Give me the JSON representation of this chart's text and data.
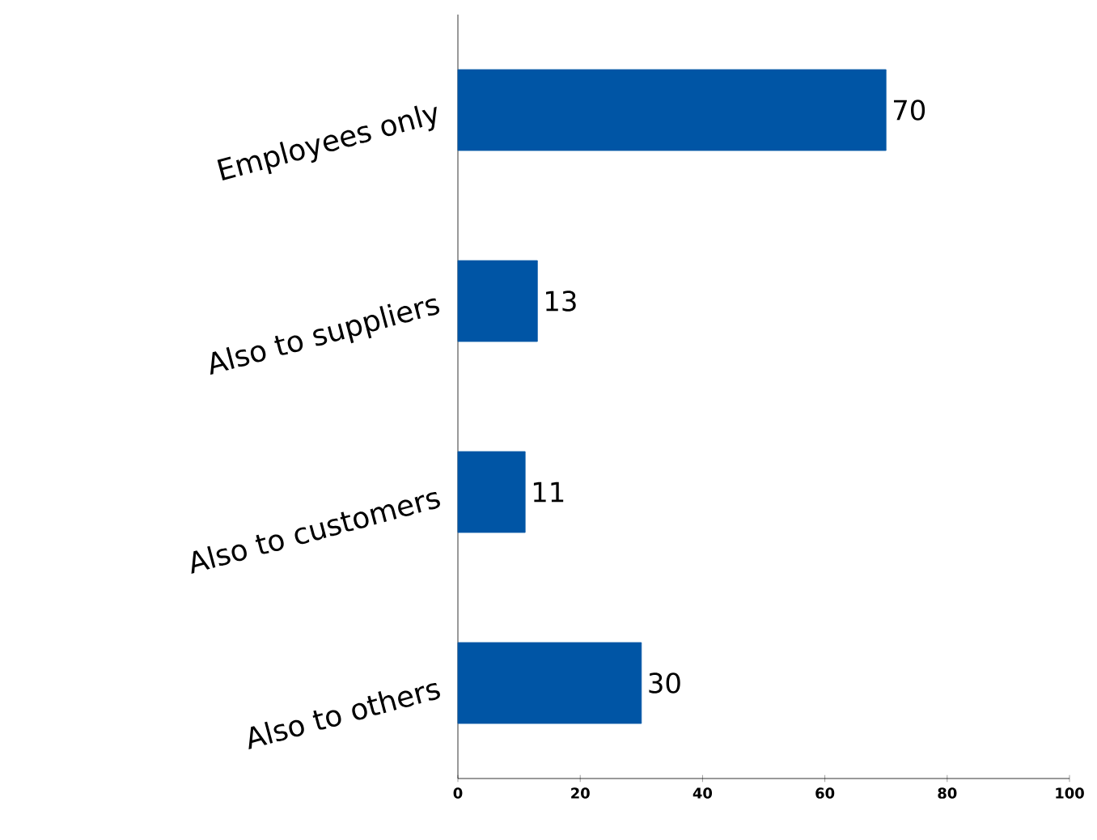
{
  "chart_data": {
    "type": "bar",
    "orientation": "horizontal",
    "categories": [
      "Employees only",
      "Also to suppliers",
      "Also to customers",
      "Also to others"
    ],
    "values": [
      70,
      13,
      11,
      30
    ],
    "color": "#0055a5",
    "xlim": [
      0,
      100
    ],
    "xticks": [
      0,
      20,
      40,
      60,
      80,
      100
    ],
    "data_labels": true,
    "grid": false
  }
}
